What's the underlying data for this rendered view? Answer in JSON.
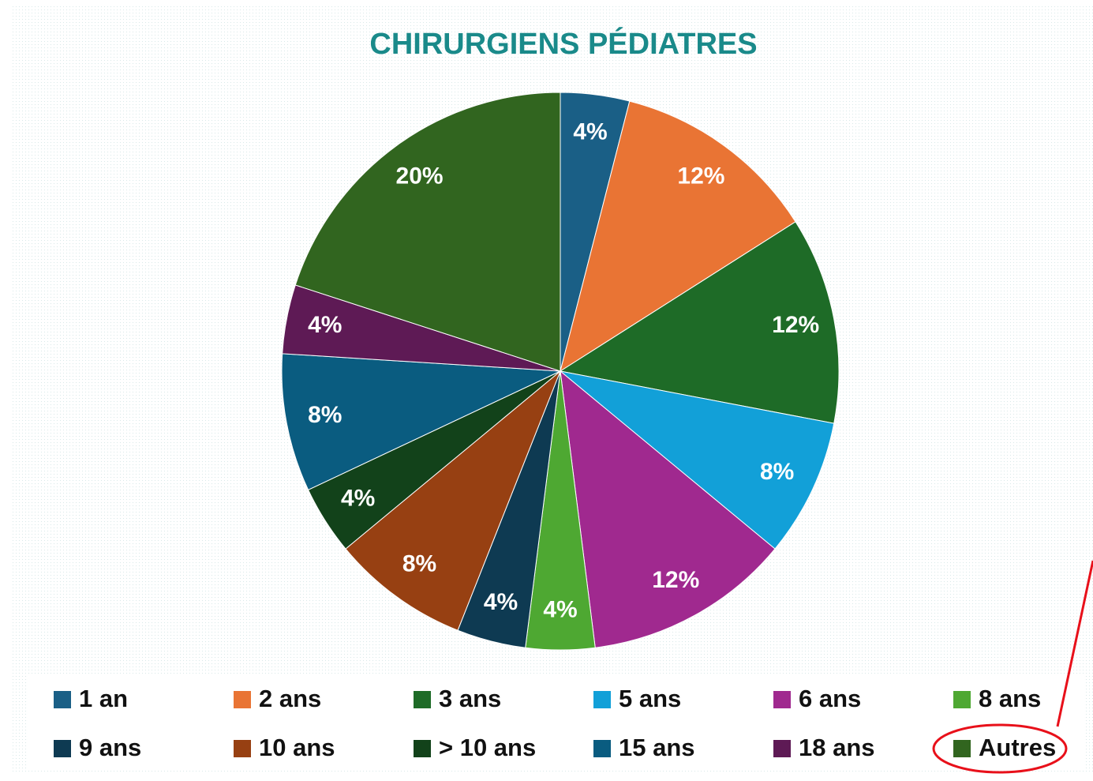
{
  "chart_data": {
    "type": "pie",
    "title": "CHIRURGIENS PÉDIATRES",
    "categories": [
      "1 an",
      "2 ans",
      "3 ans",
      "5 ans",
      "6 ans",
      "8 ans",
      "9 ans",
      "10 ans",
      "> 10 ans",
      "15 ans",
      "18 ans",
      "Autres"
    ],
    "values": [
      4,
      12,
      12,
      8,
      12,
      4,
      4,
      8,
      4,
      8,
      4,
      20
    ],
    "value_labels": [
      "4%",
      "12%",
      "12%",
      "8%",
      "12%",
      "4%",
      "4%",
      "8%",
      "4%",
      "8%",
      "4%",
      "20%"
    ],
    "colors": [
      "#1a5f86",
      "#e97434",
      "#1e6b27",
      "#12a0d8",
      "#a0298f",
      "#4ea832",
      "#0e3a52",
      "#974012",
      "#12421a",
      "#0a5c80",
      "#5e1a55",
      "#31651f"
    ],
    "legend": "bottom"
  }
}
